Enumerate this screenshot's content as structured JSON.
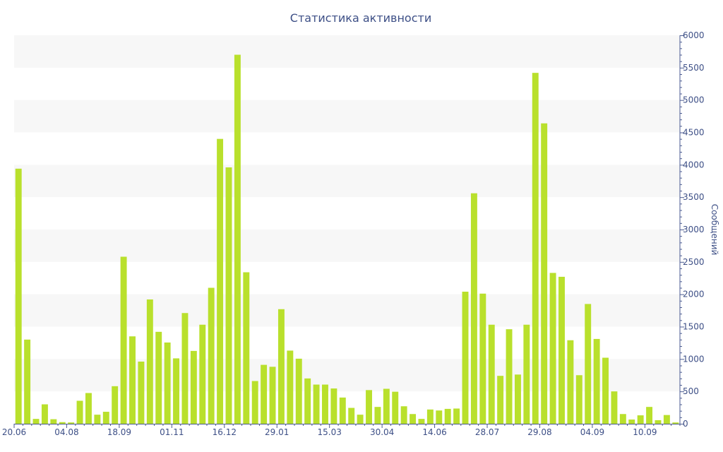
{
  "chart_data": {
    "type": "bar",
    "title": "Статистика активности",
    "ylabel": "Сообщений",
    "xlabel": "",
    "ylim": [
      0,
      6000
    ],
    "y_ticks": [
      0,
      500,
      1000,
      1500,
      2000,
      2500,
      3000,
      3500,
      4000,
      4500,
      5000,
      5500,
      6000
    ],
    "x_tick_labels": [
      {
        "index": 0,
        "label": "20.06"
      },
      {
        "index": 6,
        "label": "04.08"
      },
      {
        "index": 12,
        "label": "18.09"
      },
      {
        "index": 18,
        "label": "01.11"
      },
      {
        "index": 24,
        "label": "16.12"
      },
      {
        "index": 30,
        "label": "29.01"
      },
      {
        "index": 36,
        "label": "15.03"
      },
      {
        "index": 42,
        "label": "30.04"
      },
      {
        "index": 48,
        "label": "14.06"
      },
      {
        "index": 54,
        "label": "28.07"
      },
      {
        "index": 60,
        "label": "29.08"
      },
      {
        "index": 66,
        "label": "04.09"
      },
      {
        "index": 72,
        "label": "10.09"
      }
    ],
    "values": [
      3940,
      1300,
      75,
      300,
      70,
      25,
      20,
      355,
      475,
      140,
      185,
      580,
      2580,
      1350,
      960,
      1920,
      1420,
      1255,
      1010,
      1710,
      1125,
      1530,
      2100,
      4400,
      3960,
      5700,
      2340,
      660,
      910,
      880,
      1770,
      1130,
      1005,
      700,
      605,
      605,
      545,
      405,
      245,
      140,
      520,
      260,
      540,
      495,
      270,
      150,
      75,
      220,
      205,
      230,
      235,
      2040,
      3560,
      2010,
      1530,
      740,
      1460,
      760,
      1530,
      5420,
      4640,
      2330,
      2270,
      1290,
      750,
      1850,
      1310,
      1020,
      500,
      150,
      65,
      130,
      260,
      55,
      135,
      20
    ],
    "bar_color": "#b9e02c",
    "band_color": "#f7f7f7",
    "text_color": "#3d4f86",
    "axis_color": "#4a5a90",
    "grid": "alternating horizontal bands",
    "y_axis_position": "right",
    "legend": "none"
  }
}
